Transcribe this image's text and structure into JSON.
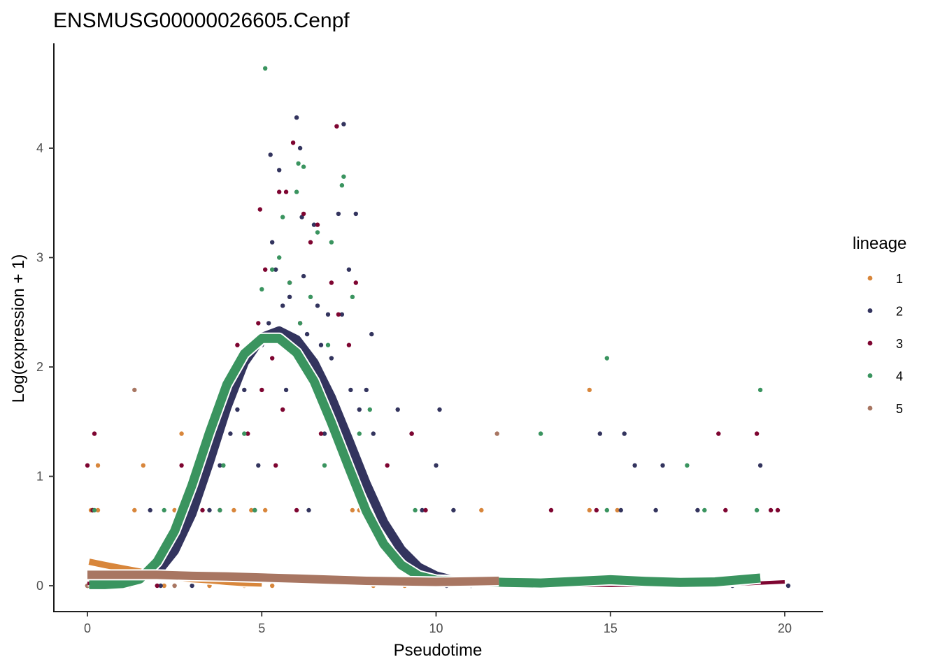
{
  "chart_data": {
    "type": "scatter",
    "title": "ENSMUSG00000026605.Cenpf",
    "xlabel": "Pseudotime",
    "ylabel": "Log(expression + 1)",
    "xlim": [
      -0.95,
      21.1
    ],
    "ylim": [
      -0.24,
      4.96
    ],
    "x_ticks": [
      0,
      5,
      10,
      15,
      20
    ],
    "y_ticks": [
      0,
      1,
      2,
      3,
      4
    ],
    "x_tick_labels": [
      "0",
      "5",
      "10",
      "15",
      "20"
    ],
    "y_tick_labels": [
      "0",
      "1",
      "2",
      "3",
      "4"
    ],
    "grid": false,
    "legend": {
      "title": "lineage",
      "position": "right",
      "entries": [
        {
          "label": "1",
          "color": "#D8863B"
        },
        {
          "label": "2",
          "color": "#33345E"
        },
        {
          "label": "3",
          "color": "#7E0531"
        },
        {
          "label": "4",
          "color": "#3A945F"
        },
        {
          "label": "5",
          "color": "#A87662"
        }
      ]
    },
    "series": [
      {
        "name": "1",
        "color": "#D8863B",
        "points": [
          [
            0,
            0
          ],
          [
            0.1,
            0.69
          ],
          [
            0.2,
            0
          ],
          [
            0.3,
            0.69
          ],
          [
            0.35,
            0
          ],
          [
            0.3,
            1.1
          ],
          [
            1.35,
            0.69
          ],
          [
            1.6,
            1.1
          ],
          [
            2.7,
            1.39
          ],
          [
            2.2,
            0
          ],
          [
            2.5,
            0.69
          ],
          [
            3,
            0.69
          ],
          [
            3.5,
            0
          ],
          [
            4.2,
            0.69
          ],
          [
            4.5,
            0
          ],
          [
            4.7,
            0.69
          ],
          [
            5.1,
            0.69
          ],
          [
            5.3,
            0
          ],
          [
            7.8,
            0.69
          ],
          [
            7.6,
            0.69
          ],
          [
            8.2,
            0
          ],
          [
            9.1,
            0
          ],
          [
            11.3,
            0.69
          ],
          [
            14.4,
            1.79
          ],
          [
            14.4,
            0.69
          ],
          [
            14.8,
            0
          ],
          [
            15.2,
            0.69
          ],
          [
            15.8,
            0
          ]
        ],
        "curve": [
          [
            0.05,
            0.22
          ],
          [
            0.5,
            0.19
          ],
          [
            1,
            0.16
          ],
          [
            1.5,
            0.13
          ],
          [
            2,
            0.1
          ],
          [
            2.5,
            0.08
          ],
          [
            3,
            0.06
          ],
          [
            3.5,
            0.05
          ],
          [
            4,
            0.035
          ],
          [
            4.5,
            0.025
          ],
          [
            5,
            0.02
          ]
        ]
      },
      {
        "name": "2",
        "color": "#33345E",
        "points": [
          [
            0,
            0
          ],
          [
            0.15,
            0.69
          ],
          [
            1.8,
            0.69
          ],
          [
            2.1,
            0
          ],
          [
            3,
            0
          ],
          [
            3.5,
            0.69
          ],
          [
            3.8,
            1.1
          ],
          [
            4.1,
            1.39
          ],
          [
            4.3,
            1.61
          ],
          [
            4.5,
            1.79
          ],
          [
            4.8,
            0.69
          ],
          [
            4.9,
            1.1
          ],
          [
            5,
            2.2
          ],
          [
            5.2,
            2.4
          ],
          [
            5.25,
            3.94
          ],
          [
            5.3,
            3.14
          ],
          [
            5.4,
            2.89
          ],
          [
            5.5,
            3.8
          ],
          [
            5.6,
            2.56
          ],
          [
            5.7,
            1.79
          ],
          [
            5.8,
            2.64
          ],
          [
            5.9,
            2.2
          ],
          [
            6,
            4.28
          ],
          [
            6.1,
            4
          ],
          [
            6.15,
            3.37
          ],
          [
            6.2,
            2.83
          ],
          [
            6.3,
            2.3
          ],
          [
            6.35,
            0.69
          ],
          [
            6.5,
            3.3
          ],
          [
            6.6,
            2.56
          ],
          [
            6.7,
            2.2
          ],
          [
            6.8,
            1.39
          ],
          [
            6.9,
            2.48
          ],
          [
            7,
            2.08
          ],
          [
            7,
            1.79
          ],
          [
            7.2,
            3.4
          ],
          [
            7.3,
            2.48
          ],
          [
            7.35,
            4.22
          ],
          [
            7.5,
            2.89
          ],
          [
            7.55,
            1.79
          ],
          [
            7.7,
            3.4
          ],
          [
            7.8,
            1.61
          ],
          [
            8,
            1.79
          ],
          [
            8.15,
            2.3
          ],
          [
            8.2,
            1.39
          ],
          [
            8.4,
            0.69
          ],
          [
            8.9,
            1.61
          ],
          [
            9.3,
            1.39
          ],
          [
            9.6,
            0.69
          ],
          [
            10,
            1.1
          ],
          [
            10.1,
            1.61
          ],
          [
            10.5,
            0.69
          ],
          [
            10.3,
            0
          ],
          [
            11,
            0
          ],
          [
            12.5,
            0
          ],
          [
            14.7,
            1.39
          ],
          [
            15.3,
            0.69
          ],
          [
            15.4,
            1.39
          ],
          [
            15.7,
            1.1
          ],
          [
            16.3,
            0.69
          ],
          [
            16.5,
            1.1
          ],
          [
            17.5,
            0.69
          ],
          [
            18.5,
            0
          ],
          [
            19.3,
            1.1
          ],
          [
            20.1,
            0
          ]
        ],
        "curve": [
          [
            2,
            0.12
          ],
          [
            2.5,
            0.32
          ],
          [
            3,
            0.66
          ],
          [
            3.5,
            1.13
          ],
          [
            4,
            1.63
          ],
          [
            4.5,
            2.04
          ],
          [
            5,
            2.27
          ],
          [
            5.5,
            2.33
          ],
          [
            6,
            2.25
          ],
          [
            6.5,
            2.04
          ],
          [
            7,
            1.72
          ],
          [
            7.5,
            1.33
          ],
          [
            8,
            0.93
          ],
          [
            8.5,
            0.58
          ],
          [
            9,
            0.33
          ],
          [
            9.5,
            0.17
          ],
          [
            10,
            0.09
          ],
          [
            10.5,
            0.05
          ],
          [
            11,
            0.03
          ]
        ]
      },
      {
        "name": "3",
        "color": "#7E0531",
        "points": [
          [
            0,
            1.1
          ],
          [
            0.15,
            0.69
          ],
          [
            0.2,
            1.39
          ],
          [
            0.3,
            0
          ],
          [
            1.2,
            0
          ],
          [
            2,
            0
          ],
          [
            2.7,
            1.1
          ],
          [
            3.3,
            0.69
          ],
          [
            3.8,
            0.69
          ],
          [
            4.3,
            2.2
          ],
          [
            4.6,
            1.39
          ],
          [
            4.9,
            2.4
          ],
          [
            4.95,
            3.44
          ],
          [
            5.1,
            2.89
          ],
          [
            5,
            1.79
          ],
          [
            5.3,
            2.08
          ],
          [
            5.4,
            1.1
          ],
          [
            5.5,
            3.6
          ],
          [
            5.6,
            1.61
          ],
          [
            5.7,
            3.6
          ],
          [
            5.8,
            2.77
          ],
          [
            5.9,
            4.05
          ],
          [
            6,
            0.69
          ],
          [
            6.1,
            2.4
          ],
          [
            6.2,
            3.4
          ],
          [
            6.3,
            1.94
          ],
          [
            6.4,
            3.14
          ],
          [
            6.6,
            3.3
          ],
          [
            6.7,
            1.39
          ],
          [
            6.9,
            1.79
          ],
          [
            7,
            2.77
          ],
          [
            7.15,
            4.2
          ],
          [
            7.2,
            2.48
          ],
          [
            7.4,
            1.1
          ],
          [
            7.5,
            2.2
          ],
          [
            7.7,
            2.77
          ],
          [
            8,
            0.69
          ],
          [
            8.6,
            1.1
          ],
          [
            9.3,
            1.39
          ],
          [
            9.7,
            0.69
          ],
          [
            13.3,
            0.69
          ],
          [
            14.6,
            0.69
          ],
          [
            18.1,
            1.39
          ],
          [
            18.3,
            0.69
          ],
          [
            19.2,
            1.39
          ],
          [
            19.6,
            0.69
          ],
          [
            19.8,
            0.69
          ]
        ],
        "curve": [
          [
            0,
            0.02
          ],
          [
            1,
            0.05
          ],
          [
            1.5,
            0.1
          ],
          [
            2,
            0.18
          ],
          [
            2.5,
            0.41
          ],
          [
            3,
            0.78
          ],
          [
            3.5,
            1.24
          ],
          [
            4,
            1.7
          ],
          [
            4.5,
            2.05
          ],
          [
            5,
            2.26
          ],
          [
            5.5,
            2.3
          ],
          [
            6,
            2.19
          ],
          [
            6.5,
            1.95
          ],
          [
            7,
            1.58
          ],
          [
            7.5,
            1.17
          ],
          [
            8,
            0.76
          ],
          [
            8.5,
            0.42
          ],
          [
            9,
            0.2
          ],
          [
            9.5,
            0.09
          ],
          [
            10,
            0.04
          ],
          [
            10.5,
            0.015
          ],
          [
            11,
            0.01
          ],
          [
            12,
            0.005
          ],
          [
            14,
            0.005
          ],
          [
            16,
            0.005
          ],
          [
            18,
            0.01
          ],
          [
            19,
            0.02
          ],
          [
            20,
            0.035
          ]
        ]
      },
      {
        "name": "4",
        "color": "#3A945F",
        "points": [
          [
            0.2,
            0.69
          ],
          [
            2.2,
            0.69
          ],
          [
            3.8,
            0.69
          ],
          [
            3.9,
            1.1
          ],
          [
            4.5,
            1.39
          ],
          [
            4.8,
            0.69
          ],
          [
            5,
            2.71
          ],
          [
            5.1,
            4.73
          ],
          [
            5.3,
            2.89
          ],
          [
            5.5,
            3
          ],
          [
            5.6,
            3.37
          ],
          [
            5.8,
            2.77
          ],
          [
            6,
            3.6
          ],
          [
            6.05,
            3.86
          ],
          [
            6.1,
            2.4
          ],
          [
            6.2,
            3.83
          ],
          [
            6.4,
            2.64
          ],
          [
            6.6,
            3.23
          ],
          [
            6.8,
            1.1
          ],
          [
            6.9,
            2.2
          ],
          [
            7,
            3.14
          ],
          [
            7.3,
            3.66
          ],
          [
            7.35,
            3.74
          ],
          [
            7.5,
            1.1
          ],
          [
            7.6,
            2.64
          ],
          [
            7.8,
            1.39
          ],
          [
            8.1,
            1.61
          ],
          [
            9.4,
            0.69
          ],
          [
            13,
            1.39
          ],
          [
            14.9,
            2.08
          ],
          [
            14.9,
            0.69
          ],
          [
            16.1,
            0
          ],
          [
            17.2,
            1.1
          ],
          [
            17.7,
            0.69
          ],
          [
            19.3,
            1.79
          ],
          [
            19.2,
            0.69
          ]
        ],
        "curve": [
          [
            0.05,
            0.01
          ],
          [
            0.5,
            0.01
          ],
          [
            1,
            0.02
          ],
          [
            1.5,
            0.06
          ],
          [
            2,
            0.22
          ],
          [
            2.5,
            0.5
          ],
          [
            3,
            0.92
          ],
          [
            3.5,
            1.4
          ],
          [
            4,
            1.84
          ],
          [
            4.5,
            2.12
          ],
          [
            5,
            2.26
          ],
          [
            5.5,
            2.26
          ],
          [
            6,
            2.13
          ],
          [
            6.5,
            1.87
          ],
          [
            7,
            1.49
          ],
          [
            7.5,
            1.08
          ],
          [
            8,
            0.68
          ],
          [
            8.5,
            0.38
          ],
          [
            9,
            0.19
          ],
          [
            9.5,
            0.09
          ],
          [
            10,
            0.05
          ],
          [
            11,
            0.04
          ],
          [
            12,
            0.03
          ],
          [
            13,
            0.025
          ],
          [
            14,
            0.04
          ],
          [
            15,
            0.055
          ],
          [
            16,
            0.04
          ],
          [
            17,
            0.03
          ],
          [
            18,
            0.035
          ],
          [
            19.3,
            0.07
          ]
        ]
      },
      {
        "name": "5",
        "color": "#A87662",
        "points": [
          [
            1.35,
            1.79
          ],
          [
            11.75,
            1.39
          ],
          [
            0,
            0
          ],
          [
            2.5,
            0
          ]
        ],
        "curve": [
          [
            0,
            0.1
          ],
          [
            1,
            0.1
          ],
          [
            2,
            0.1
          ],
          [
            3,
            0.09
          ],
          [
            4,
            0.085
          ],
          [
            5,
            0.075
          ],
          [
            6,
            0.065
          ],
          [
            7,
            0.055
          ],
          [
            8,
            0.045
          ],
          [
            9,
            0.04
          ],
          [
            10,
            0.035
          ],
          [
            11,
            0.04
          ],
          [
            11.8,
            0.045
          ]
        ]
      }
    ]
  }
}
